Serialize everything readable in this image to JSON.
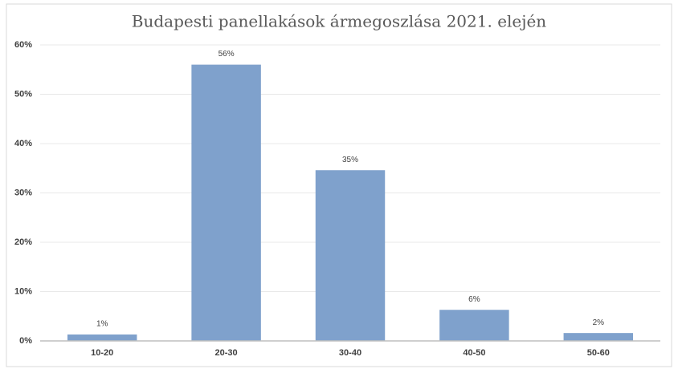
{
  "chart_data": {
    "type": "bar",
    "title": "Budapesti panellakások ármegoszlása 2021. elején",
    "categories": [
      "10-20",
      "20-30",
      "30-40",
      "40-50",
      "50-60"
    ],
    "values": [
      1.3,
      56,
      34.6,
      6.3,
      1.6
    ],
    "value_labels": [
      "1%",
      "56%",
      "35%",
      "6%",
      "2%"
    ],
    "color": "#7fa1cc",
    "ylim": [
      0,
      60
    ],
    "yticks": [
      {
        "value": 0,
        "label": "0%"
      },
      {
        "value": 10,
        "label": "10%"
      },
      {
        "value": 20,
        "label": "20%"
      },
      {
        "value": 30,
        "label": "30%"
      },
      {
        "value": 40,
        "label": "40%"
      },
      {
        "value": 50,
        "label": "50%"
      },
      {
        "value": 60,
        "label": "60%"
      }
    ],
    "grid": true
  }
}
